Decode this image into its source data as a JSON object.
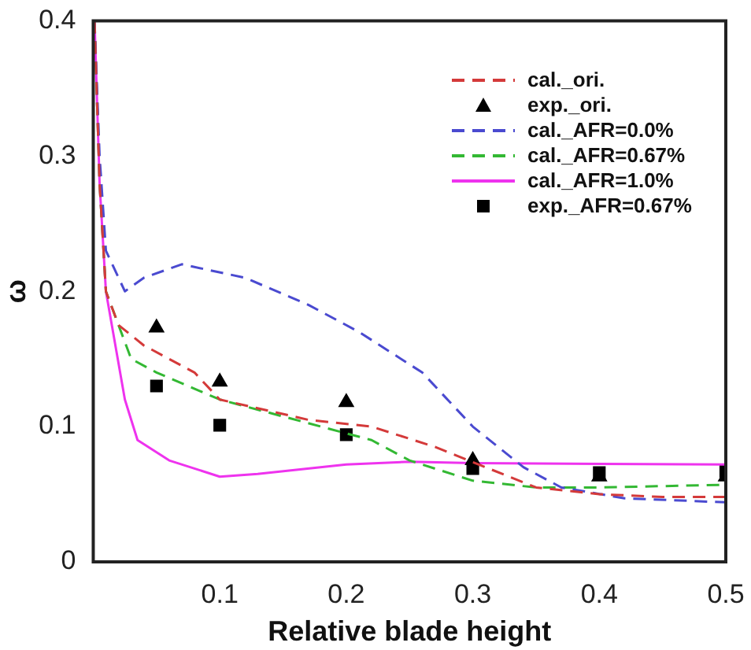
{
  "chart_data": {
    "type": "line",
    "xlabel": "Relative blade height",
    "ylabel": "ω",
    "xlim": [
      0,
      0.5
    ],
    "ylim": [
      0,
      0.4
    ],
    "xticks": [
      0.1,
      0.2,
      0.3,
      0.4,
      0.5
    ],
    "yticks": [
      0,
      0.1,
      0.2,
      0.3,
      0.4
    ],
    "grid": false,
    "legend": "top right",
    "series": [
      {
        "name": "cal._ori.",
        "color": "#d43a3a",
        "line_style": "dashed",
        "marker": "none",
        "x": [
          0.001,
          0.005,
          0.01,
          0.02,
          0.04,
          0.08,
          0.1,
          0.17,
          0.22,
          0.27,
          0.31,
          0.35,
          0.4,
          0.45,
          0.5
        ],
        "values": [
          0.4,
          0.28,
          0.2,
          0.175,
          0.16,
          0.14,
          0.12,
          0.105,
          0.1,
          0.085,
          0.07,
          0.055,
          0.05,
          0.048,
          0.048
        ]
      },
      {
        "name": "exp._ori.",
        "type": "scatter",
        "color": "#000000",
        "marker": "triangle",
        "x": [
          0.05,
          0.1,
          0.2,
          0.3,
          0.4,
          0.5
        ],
        "values": [
          0.173,
          0.133,
          0.118,
          0.075,
          0.063,
          0.063
        ]
      },
      {
        "name": "cal._AFR=0.0%",
        "color": "#4a4ad0",
        "line_style": "dashed",
        "marker": "none",
        "x": [
          0.001,
          0.005,
          0.01,
          0.025,
          0.04,
          0.07,
          0.12,
          0.17,
          0.21,
          0.26,
          0.3,
          0.34,
          0.37,
          0.42,
          0.5
        ],
        "values": [
          0.4,
          0.3,
          0.23,
          0.2,
          0.21,
          0.22,
          0.21,
          0.19,
          0.17,
          0.14,
          0.1,
          0.07,
          0.055,
          0.047,
          0.044
        ]
      },
      {
        "name": "cal._AFR=0.67%",
        "color": "#33b833",
        "line_style": "dashed",
        "marker": "none",
        "x": [
          0.001,
          0.005,
          0.01,
          0.03,
          0.05,
          0.1,
          0.18,
          0.22,
          0.25,
          0.3,
          0.35,
          0.4,
          0.5
        ],
        "values": [
          0.4,
          0.28,
          0.2,
          0.15,
          0.14,
          0.12,
          0.1,
          0.09,
          0.075,
          0.06,
          0.055,
          0.055,
          0.057
        ]
      },
      {
        "name": "cal._AFR=1.0%",
        "color": "#ee33ee",
        "line_style": "solid",
        "marker": "none",
        "x": [
          0.001,
          0.005,
          0.01,
          0.025,
          0.035,
          0.06,
          0.1,
          0.13,
          0.2,
          0.25,
          0.3,
          0.5
        ],
        "values": [
          0.4,
          0.28,
          0.2,
          0.12,
          0.09,
          0.075,
          0.063,
          0.065,
          0.072,
          0.074,
          0.073,
          0.072
        ]
      },
      {
        "name": "exp._AFR=0.67%",
        "type": "scatter",
        "color": "#000000",
        "marker": "square",
        "x": [
          0.05,
          0.1,
          0.2,
          0.3,
          0.4,
          0.5
        ],
        "values": [
          0.13,
          0.101,
          0.094,
          0.069,
          0.066,
          0.067
        ]
      }
    ]
  }
}
